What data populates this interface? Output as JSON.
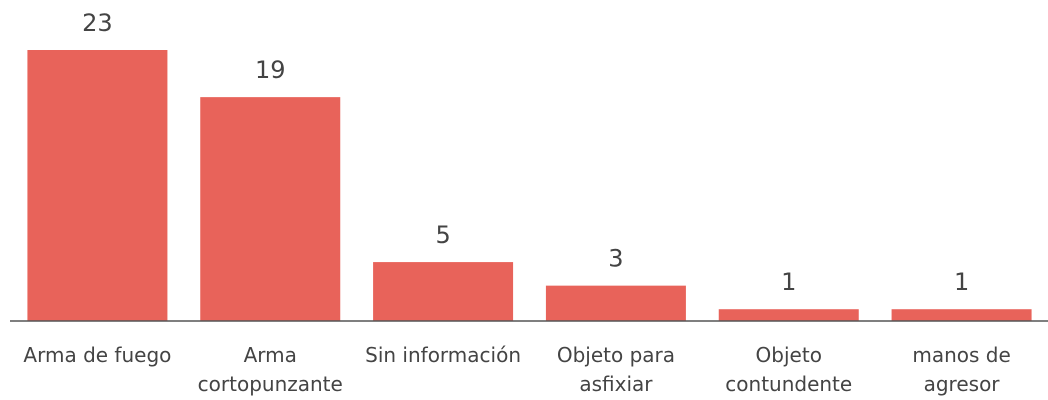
{
  "chart_data": {
    "type": "bar",
    "categories": [
      "Arma de fuego",
      "Arma\ncortopunzante",
      "Sin información",
      "Objeto para\nasfixiar",
      "Objeto\ncontundente",
      "manos de\nagresor"
    ],
    "values": [
      23,
      19,
      5,
      3,
      1,
      1
    ],
    "color": "#e8635a",
    "ylim": [
      0,
      23
    ]
  }
}
